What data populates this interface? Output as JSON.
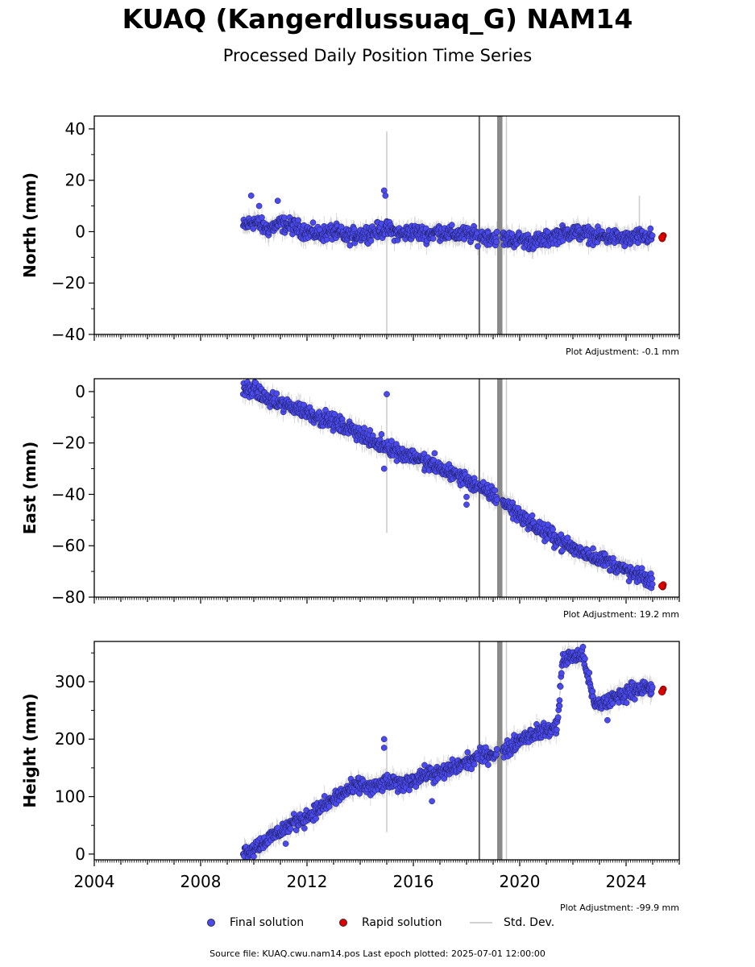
{
  "title": "KUAQ (Kangerdlussuaq_G) NAM14",
  "subtitle": "Processed Daily Position Time Series",
  "legend": {
    "final_label": "Final solution",
    "rapid_label": "Rapid solution",
    "std_label": "Std. Dev.",
    "final_color": "#4a4af0",
    "rapid_color": "#e00000",
    "std_color": "#d0d0d0"
  },
  "footer": "Source file: KUAQ.cwu.nam14.pos  Last epoch plotted: 2025-07-01 12:00:00",
  "chart_data": [
    {
      "type": "scatter",
      "ylabel": "North (mm)",
      "adjustment_label": "Plot Adjustment: -0.1 mm",
      "xlim": [
        2004,
        2026
      ],
      "ylim": [
        -40,
        45
      ],
      "yticks": [
        40,
        20,
        0,
        -20,
        -40
      ],
      "ytick_labels": [
        "40",
        "20",
        "0",
        "−20",
        "−40"
      ],
      "series": [
        {
          "name": "Final solution",
          "x": [
            2009.6,
            2010.0,
            2010.5,
            2011.0,
            2011.5,
            2012.0,
            2012.5,
            2013.0,
            2013.5,
            2014.0,
            2014.5,
            2015.0,
            2015.5,
            2016.0,
            2016.5,
            2017.0,
            2017.5,
            2018.0,
            2018.5,
            2019.0,
            2019.5,
            2020.0,
            2020.5,
            2021.0,
            2021.5,
            2022.0,
            2022.5,
            2023.0,
            2023.5,
            2024.0,
            2024.5,
            2025.0
          ],
          "y": [
            2,
            4,
            1,
            3,
            2,
            0,
            -1,
            0,
            -2,
            -1,
            0,
            1,
            -1,
            0,
            -1,
            0,
            -1,
            -1,
            -2,
            -2,
            -3,
            -3,
            -4,
            -3,
            -1,
            0,
            -1,
            -2,
            -2,
            -3,
            -2,
            -2
          ]
        },
        {
          "name": "Rapid solution",
          "x": [
            2025.4
          ],
          "y": [
            -2
          ]
        }
      ],
      "outliers": {
        "x": [
          2009.9,
          2010.2,
          2010.9,
          2014.9,
          2014.95
        ],
        "y": [
          14,
          10,
          12,
          16,
          14
        ]
      },
      "std_spikes": [
        {
          "x": 2015.0,
          "y0": -40,
          "y1": 39
        },
        {
          "x": 2024.5,
          "y0": -4,
          "y1": 14
        }
      ],
      "gaps": [
        [
          2018.45,
          2018.5
        ],
        [
          2019.15,
          2019.35
        ]
      ],
      "light_lines": [
        2019.5
      ]
    },
    {
      "type": "scatter",
      "ylabel": "East (mm)",
      "adjustment_label": "Plot Adjustment: 19.2 mm",
      "xlim": [
        2004,
        2026
      ],
      "ylim": [
        -80,
        5
      ],
      "yticks": [
        0,
        -20,
        -40,
        -60,
        -80
      ],
      "ytick_labels": [
        "0",
        "−20",
        "−40",
        "−60",
        "−80"
      ],
      "series": [
        {
          "name": "Final solution",
          "x": [
            2009.6,
            2010.0,
            2010.5,
            2011.0,
            2011.5,
            2012.0,
            2012.5,
            2013.0,
            2013.5,
            2014.0,
            2014.5,
            2015.0,
            2015.5,
            2016.0,
            2016.5,
            2017.0,
            2017.5,
            2018.0,
            2018.5,
            2019.0,
            2019.5,
            2020.0,
            2020.5,
            2021.0,
            2021.5,
            2022.0,
            2022.5,
            2023.0,
            2023.5,
            2024.0,
            2024.5,
            2025.0
          ],
          "y": [
            0,
            1,
            -3,
            -5,
            -6,
            -8,
            -10,
            -12,
            -14,
            -16,
            -20,
            -21,
            -24,
            -25,
            -28,
            -30,
            -32,
            -34,
            -38,
            -40,
            -44,
            -48,
            -52,
            -55,
            -58,
            -61,
            -63,
            -65,
            -67,
            -70,
            -72,
            -74
          ]
        },
        {
          "name": "Rapid solution",
          "x": [
            2025.4
          ],
          "y": [
            -75
          ]
        }
      ],
      "outliers": {
        "x": [
          2015.0,
          2014.9,
          2018.0,
          2018.0,
          2016.8
        ],
        "y": [
          -1,
          -30,
          -41,
          -44,
          -24
        ]
      },
      "std_spikes": [
        {
          "x": 2015.0,
          "y0": -55,
          "y1": -2
        }
      ],
      "gaps": [
        [
          2018.45,
          2018.5
        ],
        [
          2019.15,
          2019.35
        ]
      ],
      "light_lines": [
        2019.5
      ]
    },
    {
      "type": "scatter",
      "ylabel": "Height (mm)",
      "adjustment_label": "Plot Adjustment: -99.9 mm",
      "xlim": [
        2004,
        2026
      ],
      "ylim": [
        -10,
        370
      ],
      "yticks": [
        300,
        200,
        100,
        0
      ],
      "ytick_labels": [
        "300",
        "200",
        "100",
        "0"
      ],
      "xticks": [
        2004,
        2008,
        2012,
        2016,
        2020,
        2024
      ],
      "xtick_labels": [
        "2004",
        "2008",
        "2012",
        "2016",
        "2020",
        "2024"
      ],
      "series": [
        {
          "name": "Final solution",
          "x": [
            2009.6,
            2010.0,
            2010.5,
            2011.0,
            2011.5,
            2012.0,
            2012.5,
            2013.0,
            2013.5,
            2014.0,
            2014.5,
            2015.0,
            2015.5,
            2016.0,
            2016.5,
            2017.0,
            2017.5,
            2018.0,
            2018.5,
            2019.0,
            2019.5,
            2020.0,
            2020.5,
            2021.0,
            2021.4,
            2021.6,
            2022.0,
            2022.4,
            2022.8,
            2023.0,
            2023.5,
            2024.0,
            2024.5,
            2025.0
          ],
          "y": [
            5,
            10,
            25,
            40,
            55,
            65,
            80,
            95,
            110,
            120,
            115,
            125,
            120,
            130,
            140,
            140,
            150,
            160,
            170,
            175,
            180,
            200,
            210,
            215,
            220,
            335,
            345,
            345,
            260,
            260,
            270,
            280,
            290,
            285
          ]
        },
        {
          "name": "Rapid solution",
          "x": [
            2025.4
          ],
          "y": [
            285
          ]
        }
      ],
      "outliers": {
        "x": [
          2014.9,
          2014.9,
          2016.7,
          2021.5,
          2023.3,
          2011.2
        ],
        "y": [
          200,
          185,
          92,
          258,
          233,
          18
        ]
      },
      "std_spikes": [
        {
          "x": 2015.0,
          "y0": 38,
          "y1": 200
        }
      ],
      "gaps": [
        [
          2018.45,
          2018.5
        ],
        [
          2019.15,
          2019.35
        ]
      ],
      "light_lines": [
        2019.5
      ]
    }
  ]
}
